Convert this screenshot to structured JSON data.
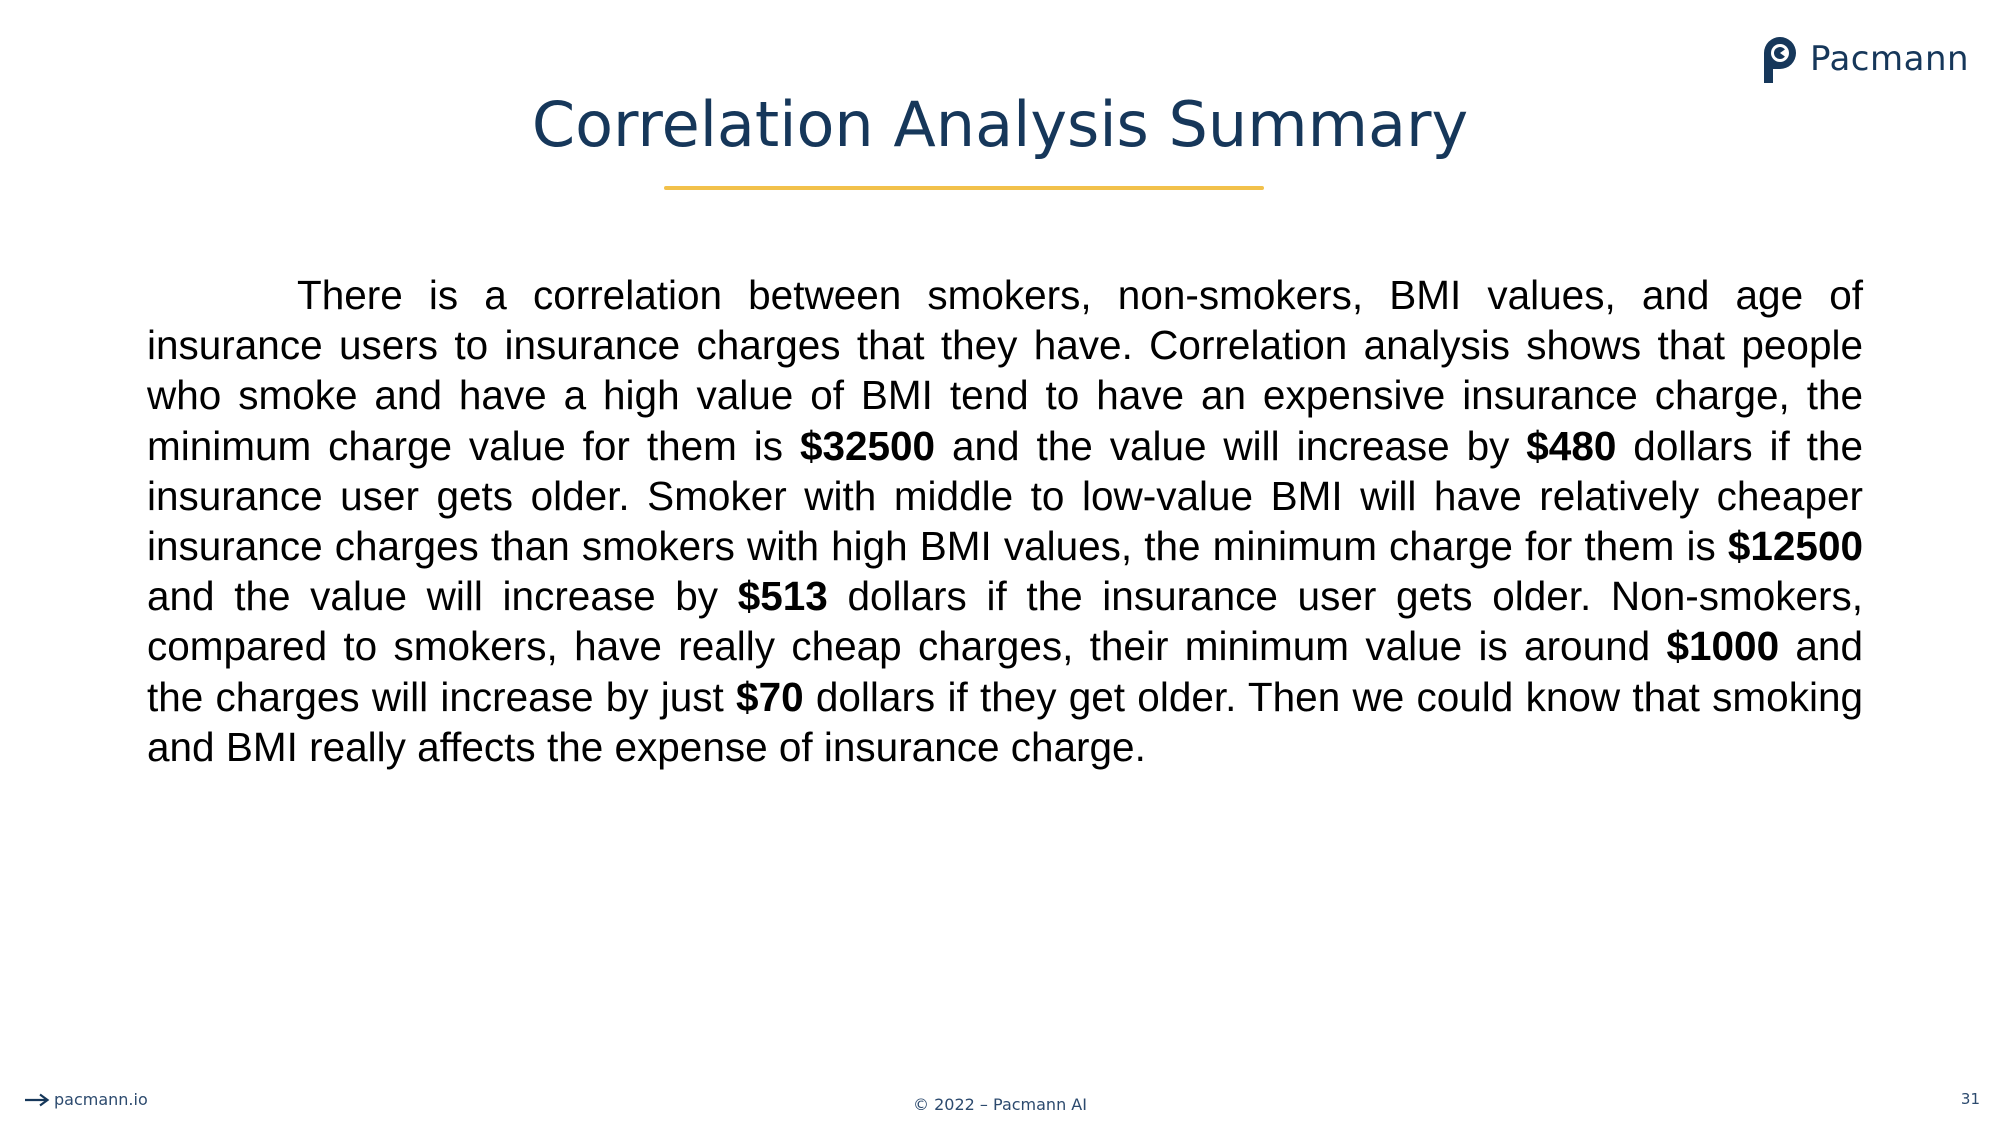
{
  "header": {
    "logo_text": "Pacmann",
    "logo_icon": "pacmann-logo-icon",
    "title": "Correlation Analysis Summary"
  },
  "body": {
    "p1": "There is a correlation between smokers, non-smokers, BMI values, and age of insurance users to insurance charges that they have. Correlation analysis shows that people who smoke and have a high value of BMI tend to have an expensive insurance charge, the minimum charge value for them is ",
    "v1": "$32500",
    "p2": " and the value will increase by ",
    "v2": "$480",
    "p3": " dollars if the insurance user gets older. Smoker with middle to low-value BMI will have relatively cheaper insurance charges than smokers with high BMI values, the minimum charge for them is ",
    "v3": "$12500",
    "p4": " and the value will increase by ",
    "v4": "$513",
    "p5": " dollars if the insurance user gets older. Non-smokers, compared to smokers, have really cheap charges, their minimum value is around ",
    "v5": "$1000",
    "p6": " and the charges will increase by just ",
    "v6": "$70",
    "p7": " dollars if they get older. Then we could know that smoking and BMI really affects the expense of insurance charge."
  },
  "footer": {
    "link_text": "pacmann.io",
    "copyright": "© 2022 – Pacmann AI",
    "page_number": "31"
  },
  "colors": {
    "title": "#16375a",
    "accent_underline": "#f2c14b",
    "body_text": "#000000",
    "footer_text": "#2c4a6e"
  }
}
